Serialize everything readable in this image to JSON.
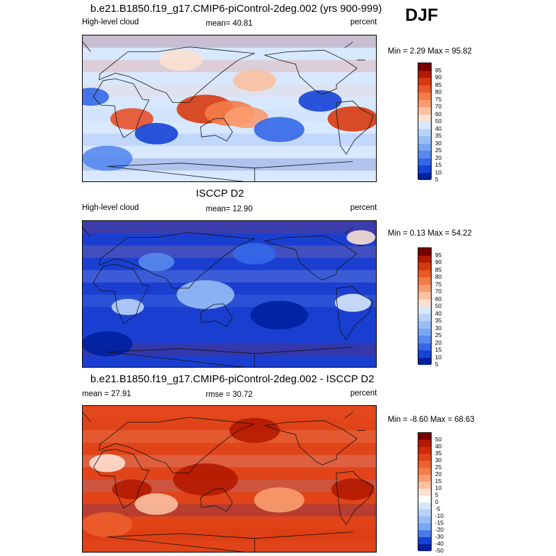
{
  "season": "DJF",
  "chart_data": [
    {
      "type": "heatmap",
      "title": "b.e21.B1850.f19_g17.CMIP6-piControl-2deg.002 (yrs 900-999)",
      "left_label": "High-level cloud",
      "stat_label": "mean= 40.81",
      "units": "percent",
      "minmax": "Min =  2.29 Max = 95.82",
      "levels": [
        "95",
        "90",
        "85",
        "80",
        "75",
        "70",
        "60",
        "50",
        "40",
        "35",
        "30",
        "25",
        "20",
        "15",
        "10",
        "5"
      ],
      "colors": [
        "#7a0000",
        "#b41a00",
        "#d83a10",
        "#ea5a28",
        "#f47c48",
        "#f89c70",
        "#fbc0a0",
        "#fbe0d0",
        "#d6e6fb",
        "#b8d2fa",
        "#97bdf6",
        "#78a6f2",
        "#5889ee",
        "#3468e8",
        "#1644d6",
        "#00209e"
      ],
      "background": "#d8e8ff",
      "features": [
        {
          "lon": 30,
          "lat": -12,
          "r": 12,
          "c": "#e8502a"
        },
        {
          "lon": 120,
          "lat": 0,
          "r": 16,
          "c": "#d83a10"
        },
        {
          "lon": 150,
          "lat": -5,
          "r": 14,
          "c": "#f47c48"
        },
        {
          "lon": -60,
          "lat": -12,
          "r": 14,
          "c": "#d83a10"
        },
        {
          "lon": 170,
          "lat": -10,
          "r": 12,
          "c": "#f89c70"
        },
        {
          "lon": 60,
          "lat": -30,
          "r": 12,
          "c": "#1644d6"
        },
        {
          "lon": 210,
          "lat": -25,
          "r": 14,
          "c": "#3468e8"
        },
        {
          "lon": 260,
          "lat": 10,
          "r": 12,
          "c": "#1644d6"
        },
        {
          "lon": -20,
          "lat": 15,
          "r": 10,
          "c": "#3468e8"
        },
        {
          "lon": 180,
          "lat": 35,
          "r": 12,
          "c": "#fbc0a0"
        },
        {
          "lon": 90,
          "lat": 60,
          "r": 12,
          "c": "#fbe0d0"
        },
        {
          "lon": 0,
          "lat": -60,
          "r": 14,
          "c": "#5889ee"
        }
      ]
    },
    {
      "type": "heatmap",
      "title": "ISCCP D2",
      "left_label": "High-level cloud",
      "stat_label": "mean=  12.90",
      "units": "percent",
      "minmax": "Min =  0.13 Max = 54.22",
      "levels": [
        "95",
        "90",
        "85",
        "80",
        "75",
        "70",
        "60",
        "50",
        "40",
        "35",
        "30",
        "25",
        "20",
        "15",
        "10",
        "5"
      ],
      "colors": [
        "#7a0000",
        "#b41a00",
        "#d83a10",
        "#ea5a28",
        "#f47c48",
        "#f89c70",
        "#fbc0a0",
        "#fbe0d0",
        "#d6e6fb",
        "#b8d2fa",
        "#97bdf6",
        "#78a6f2",
        "#5889ee",
        "#3468e8",
        "#1644d6",
        "#00209e"
      ],
      "background": "#1a3fd0",
      "features": [
        {
          "lon": 120,
          "lat": 0,
          "r": 16,
          "c": "#97bdf6"
        },
        {
          "lon": -60,
          "lat": -10,
          "r": 10,
          "c": "#d6e6fb"
        },
        {
          "lon": 25,
          "lat": -15,
          "r": 9,
          "c": "#b8d2fa"
        },
        {
          "lon": 60,
          "lat": 40,
          "r": 10,
          "c": "#5889ee"
        },
        {
          "lon": -50,
          "lat": 70,
          "r": 8,
          "c": "#fbe0d0"
        },
        {
          "lon": 210,
          "lat": -25,
          "r": 16,
          "c": "#00209e"
        },
        {
          "lon": 0,
          "lat": -60,
          "r": 14,
          "c": "#00209e"
        },
        {
          "lon": 180,
          "lat": 50,
          "r": 12,
          "c": "#3468e8"
        }
      ]
    },
    {
      "type": "heatmap",
      "title": "b.e21.B1850.f19_g17.CMIP6-piControl-2deg.002 - ISCCP D2",
      "left_label": "mean =  27.91",
      "stat_label": "rmse =  30.72",
      "units": "percent",
      "minmax": "Min = -8.60 Max = 68.63",
      "levels": [
        "50",
        "40",
        "35",
        "30",
        "25",
        "20",
        "15",
        "10",
        "5",
        "0",
        "-5",
        "-10",
        "-15",
        "-20",
        "-30",
        "-40",
        "-50"
      ],
      "colors": [
        "#7a0000",
        "#b41a00",
        "#d02a08",
        "#e04418",
        "#ec5e2c",
        "#f47c48",
        "#f89c70",
        "#fbc0a0",
        "#fde0d2",
        "#ffffff",
        "#d6e6fb",
        "#b8d2fa",
        "#97bdf6",
        "#78a6f2",
        "#4a7ceb",
        "#1644d6",
        "#00209e"
      ],
      "background": "#e04418",
      "features": [
        {
          "lon": 120,
          "lat": 0,
          "r": 18,
          "c": "#b41a00"
        },
        {
          "lon": 30,
          "lat": -12,
          "r": 11,
          "c": "#b41a00"
        },
        {
          "lon": -60,
          "lat": -12,
          "r": 12,
          "c": "#b41a00"
        },
        {
          "lon": 60,
          "lat": -30,
          "r": 12,
          "c": "#fbc0a0"
        },
        {
          "lon": 210,
          "lat": -25,
          "r": 14,
          "c": "#f89c70"
        },
        {
          "lon": 0,
          "lat": 20,
          "r": 10,
          "c": "#fde0d2"
        },
        {
          "lon": 180,
          "lat": 60,
          "r": 14,
          "c": "#b41a00"
        },
        {
          "lon": 0,
          "lat": -55,
          "r": 14,
          "c": "#ec5e2c"
        }
      ]
    }
  ]
}
